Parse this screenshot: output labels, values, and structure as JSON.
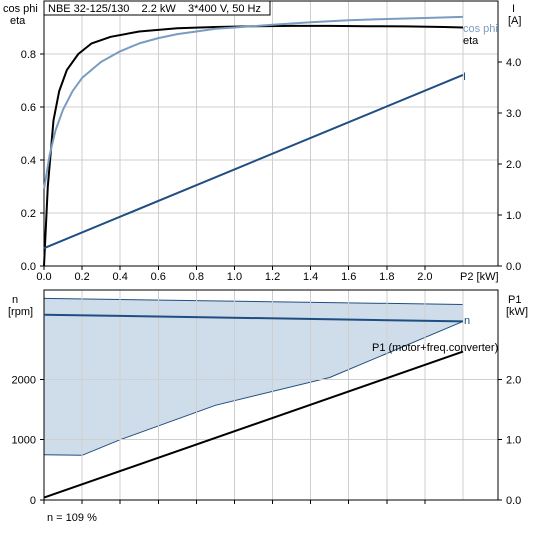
{
  "chart_data": [
    {
      "type": "line",
      "title": "NBE 32-125/130    2.2 kW    3*400 V, 50 Hz",
      "xlabel": "P2 [kW]",
      "xlim": [
        0,
        2.2
      ],
      "x_ticks": [
        "0.0",
        "0.2",
        "0.4",
        "0.6",
        "0.8",
        "1.0",
        "1.2",
        "1.4",
        "1.6",
        "1.8",
        "2.0"
      ],
      "y_left": {
        "label_lines": [
          "cos phi",
          "eta"
        ],
        "range": [
          0,
          1.0
        ],
        "ticks": [
          "0.0",
          "0.2",
          "0.4",
          "0.6",
          "0.8"
        ],
        "tick_values": [
          0,
          0.2,
          0.4,
          0.6,
          0.8
        ]
      },
      "y_right": {
        "label_lines": [
          "I",
          "[A]"
        ],
        "range": [
          0,
          5.2
        ],
        "ticks": [
          "0.0",
          "1.0",
          "2.0",
          "3.0",
          "4.0"
        ],
        "tick_values": [
          0,
          1.0,
          2.0,
          3.0,
          4.0
        ]
      },
      "series": [
        {
          "name": "eta",
          "axis": "left",
          "color": "#000000",
          "x": [
            0.0,
            0.02,
            0.05,
            0.08,
            0.12,
            0.18,
            0.25,
            0.35,
            0.5,
            0.7,
            0.9,
            1.1,
            1.3,
            1.5,
            1.7,
            1.9,
            2.1,
            2.2
          ],
          "y": [
            0.0,
            0.3,
            0.55,
            0.66,
            0.74,
            0.8,
            0.84,
            0.865,
            0.885,
            0.897,
            0.902,
            0.905,
            0.906,
            0.906,
            0.905,
            0.904,
            0.902,
            0.9
          ]
        },
        {
          "name": "cos phi",
          "axis": "left",
          "color": "#7a9cc0",
          "x": [
            0.0,
            0.03,
            0.06,
            0.1,
            0.15,
            0.2,
            0.3,
            0.4,
            0.5,
            0.6,
            0.7,
            0.8,
            0.9,
            1.0,
            1.2,
            1.4,
            1.6,
            1.8,
            2.0,
            2.2
          ],
          "y": [
            0.29,
            0.42,
            0.51,
            0.59,
            0.66,
            0.71,
            0.77,
            0.81,
            0.84,
            0.86,
            0.875,
            0.885,
            0.895,
            0.9,
            0.91,
            0.92,
            0.927,
            0.932,
            0.936,
            0.94
          ]
        },
        {
          "name": "I",
          "axis": "right",
          "color": "#1f4e82",
          "x": [
            0.0,
            2.2
          ],
          "y": [
            0.35,
            3.75
          ]
        }
      ]
    },
    {
      "type": "area",
      "xlim": [
        0,
        2.2
      ],
      "y_left": {
        "label_lines": [
          "n",
          "[rpm]"
        ],
        "range": [
          0,
          3480
        ],
        "ticks": [
          "0",
          "1000",
          "2000"
        ],
        "tick_values": [
          0,
          1000,
          2000
        ]
      },
      "y_right": {
        "label_lines": [
          "P1",
          "[kW]"
        ],
        "range": [
          0,
          3.48
        ],
        "ticks": [
          "0.0",
          "1.0",
          "2.0"
        ],
        "tick_values": [
          0,
          1.0,
          2.0
        ]
      },
      "band": {
        "color": "#cfdcea",
        "upper": {
          "x": [
            0.0,
            2.2
          ],
          "y": [
            3340,
            3240
          ]
        },
        "lower": {
          "x": [
            0.0,
            0.2,
            0.4,
            0.9,
            1.5,
            2.2
          ],
          "y": [
            750,
            740,
            1000,
            1570,
            2030,
            2960
          ]
        }
      },
      "series": [
        {
          "name": "n",
          "axis": "left",
          "color": "#1f4e82",
          "x": [
            0.0,
            2.2
          ],
          "y": [
            3070,
            2960
          ]
        },
        {
          "name": "P1 (motor+freq.converter)",
          "axis": "right",
          "color": "#000000",
          "x": [
            0.0,
            2.2
          ],
          "y": [
            0.04,
            2.46
          ]
        }
      ],
      "footnote": "n = 109 %"
    }
  ]
}
